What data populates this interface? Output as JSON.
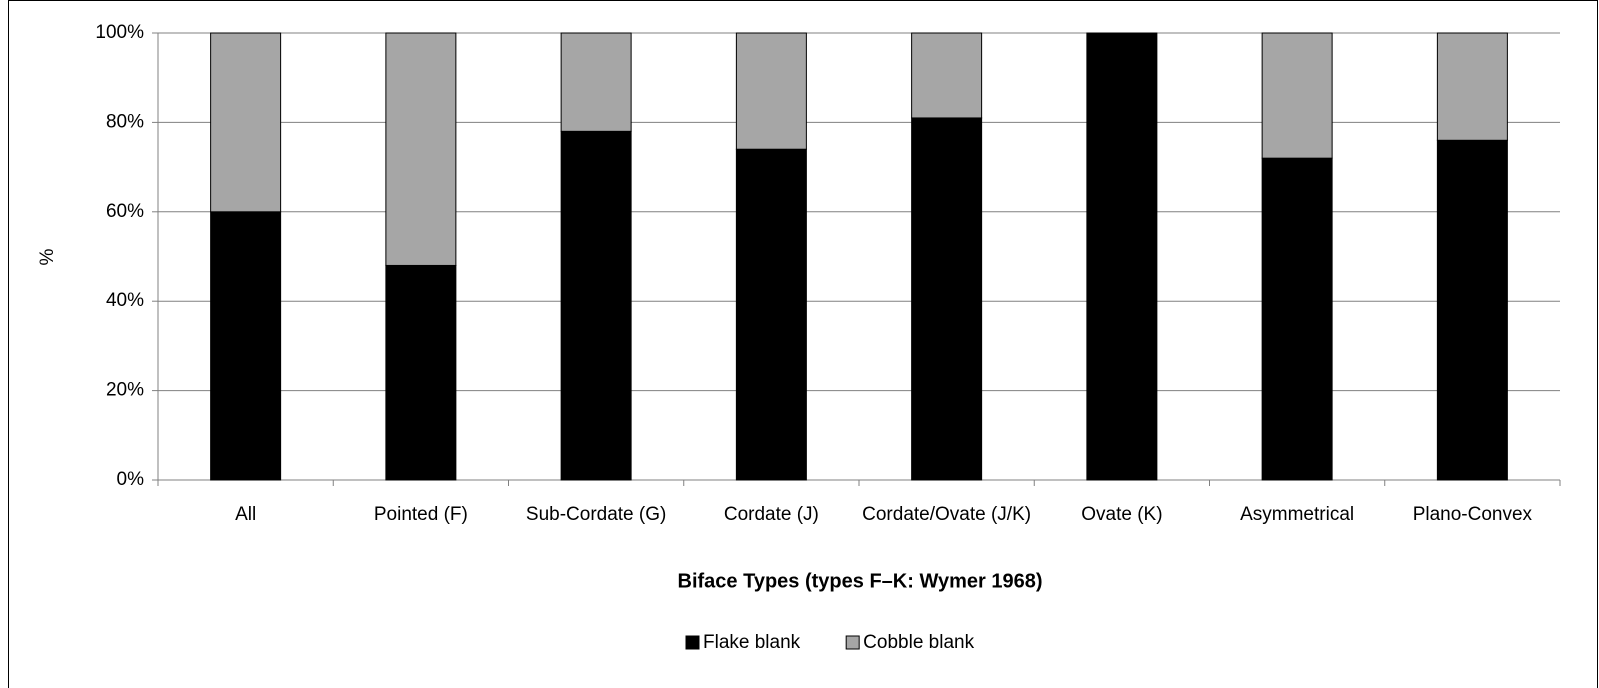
{
  "chart_data": {
    "type": "stacked_bar",
    "x_label": "Biface Types (types F–K: Wymer 1968)",
    "y_label": "%",
    "categories": [
      "All",
      "Pointed (F)",
      "Sub-Cordate (G)",
      "Cordate (J)",
      "Cordate/Ovate (J/K)",
      "Ovate (K)",
      "Asymmetrical",
      "Plano-Convex"
    ],
    "series": [
      {
        "name": "Flake blank",
        "color": "#000000",
        "values": [
          60,
          48,
          78,
          74,
          81,
          100,
          72,
          76
        ]
      },
      {
        "name": "Cobble blank",
        "color": "#a6a6a6",
        "values": [
          40,
          52,
          22,
          26,
          19,
          0,
          28,
          24
        ]
      }
    ],
    "ylim": [
      0,
      100
    ],
    "yticks": [
      {
        "value": 0,
        "label": "0%"
      },
      {
        "value": 20,
        "label": "20%"
      },
      {
        "value": 40,
        "label": "40%"
      },
      {
        "value": 60,
        "label": "60%"
      },
      {
        "value": 80,
        "label": "80%"
      },
      {
        "value": 100,
        "label": "100%"
      }
    ],
    "grid": true,
    "legend": "bottom"
  }
}
